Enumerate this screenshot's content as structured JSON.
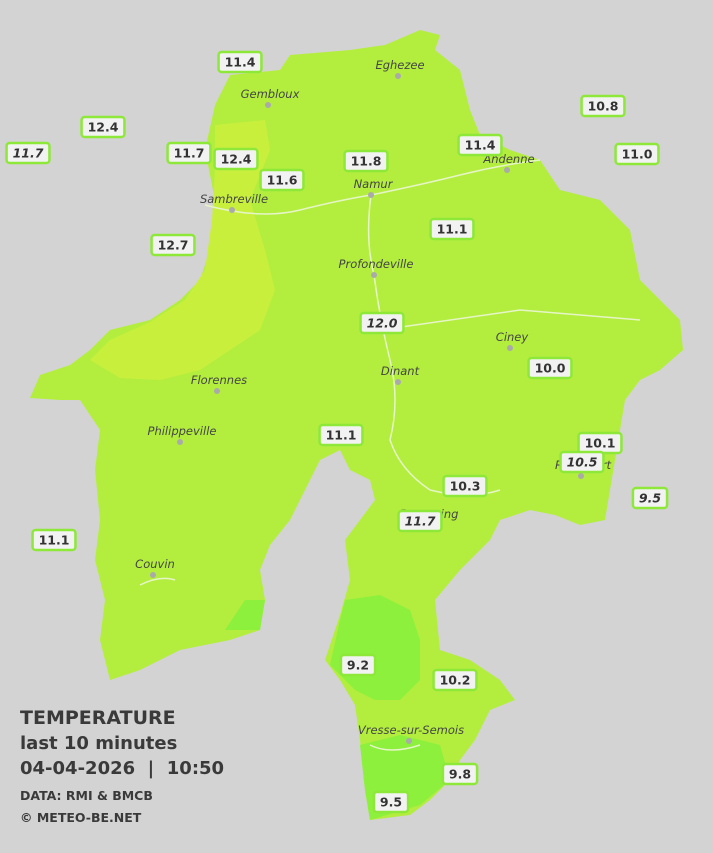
{
  "legend": {
    "title": "TEMPERATURE",
    "period": "last 10 minutes",
    "timestamp": "04-04-2026  |  10:50",
    "source": "DATA: RMI & BMCB",
    "copyright": "© METEO-BE.NET"
  },
  "cities": [
    "Eghezee",
    "Gembloux",
    "Andenne",
    "Namur",
    "Sambreville",
    "Profondeville",
    "Ciney",
    "Dinant",
    "Florennes",
    "Philippeville",
    "Rochefort",
    "Beauraing",
    "Couvin",
    "Vresse-sur-Semois"
  ],
  "stations": [
    {
      "value": "11.4",
      "italic": false
    },
    {
      "value": "12.4",
      "italic": false
    },
    {
      "value": "11.7",
      "italic": true
    },
    {
      "value": "11.7",
      "italic": false
    },
    {
      "value": "12.4",
      "italic": false
    },
    {
      "value": "11.6",
      "italic": false
    },
    {
      "value": "11.8",
      "italic": false
    },
    {
      "value": "11.4",
      "italic": false
    },
    {
      "value": "10.8",
      "italic": false
    },
    {
      "value": "11.0",
      "italic": false
    },
    {
      "value": "12.7",
      "italic": false
    },
    {
      "value": "11.1",
      "italic": false
    },
    {
      "value": "12.0",
      "italic": true
    },
    {
      "value": "10.0",
      "italic": false
    },
    {
      "value": "11.1",
      "italic": false
    },
    {
      "value": "10.1",
      "italic": false
    },
    {
      "value": "10.5",
      "italic": true
    },
    {
      "value": "10.3",
      "italic": false
    },
    {
      "value": "9.5",
      "italic": true
    },
    {
      "value": "11.7",
      "italic": true
    },
    {
      "value": "11.1",
      "italic": false
    },
    {
      "value": "9.2",
      "italic": false
    },
    {
      "value": "10.2",
      "italic": false
    },
    {
      "value": "9.8",
      "italic": false
    },
    {
      "value": "9.5",
      "italic": false
    }
  ]
}
